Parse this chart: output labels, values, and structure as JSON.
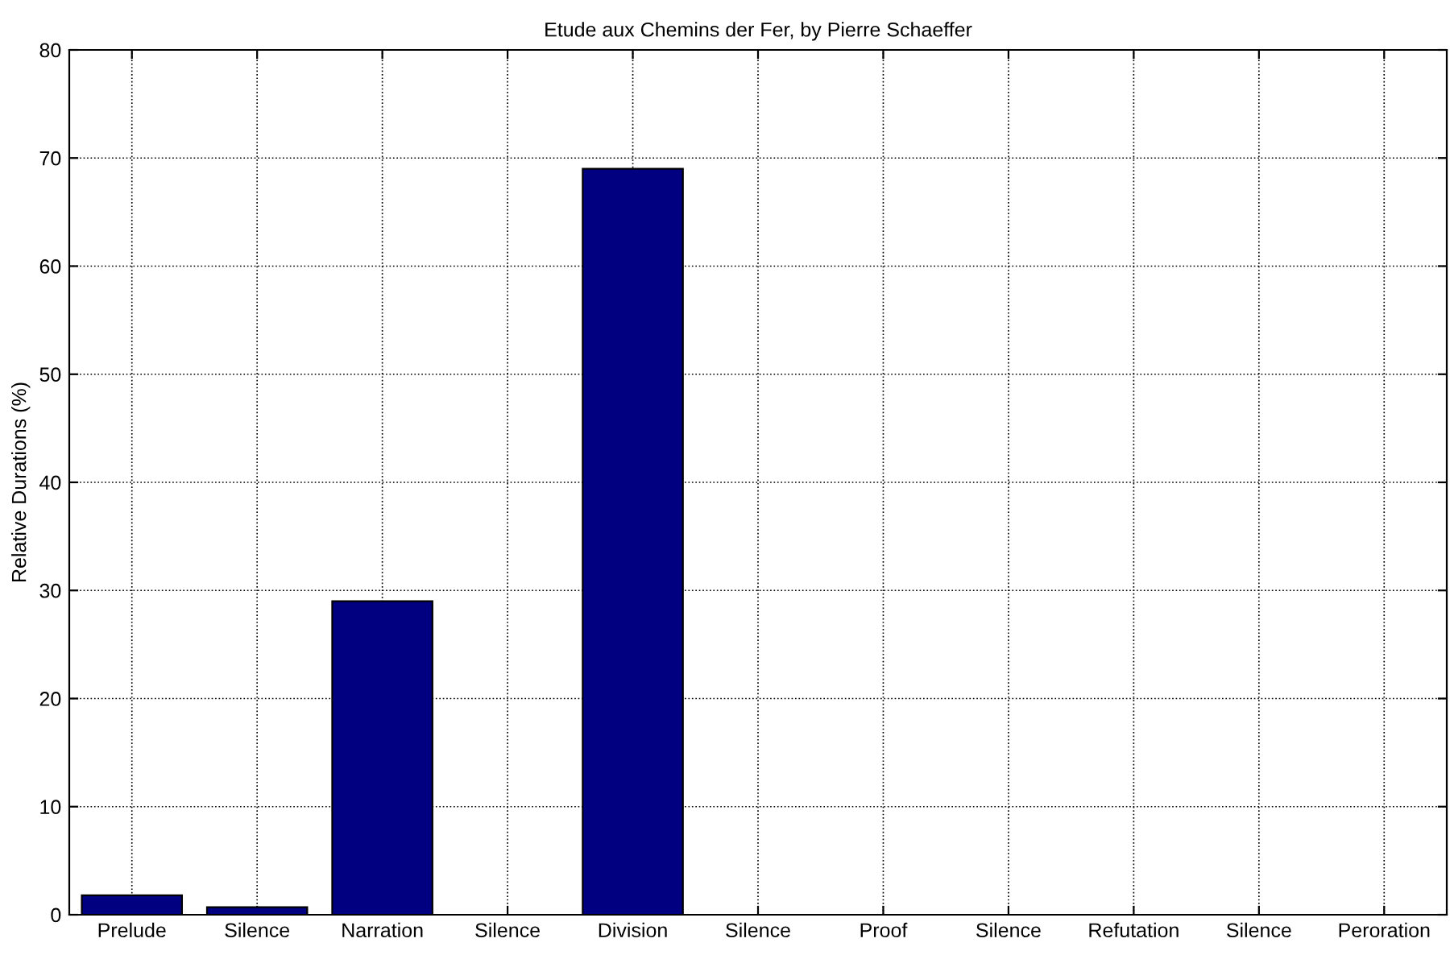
{
  "chart_data": {
    "type": "bar",
    "title": "Etude aux Chemins der Fer, by Pierre Schaeffer",
    "ylabel": "Relative Durations (%)",
    "categories": [
      "Prelude",
      "Silence",
      "Narration",
      "Silence",
      "Division",
      "Silence",
      "Proof",
      "Silence",
      "Refutation",
      "Silence",
      "Peroration"
    ],
    "values": [
      1.8,
      0.7,
      29,
      0,
      69,
      0,
      0,
      0,
      0,
      0,
      0
    ],
    "color": "#000080",
    "ylim": [
      0,
      80
    ],
    "yticks": [
      0,
      10,
      20,
      30,
      40,
      50,
      60,
      70,
      80
    ],
    "grid": true
  }
}
